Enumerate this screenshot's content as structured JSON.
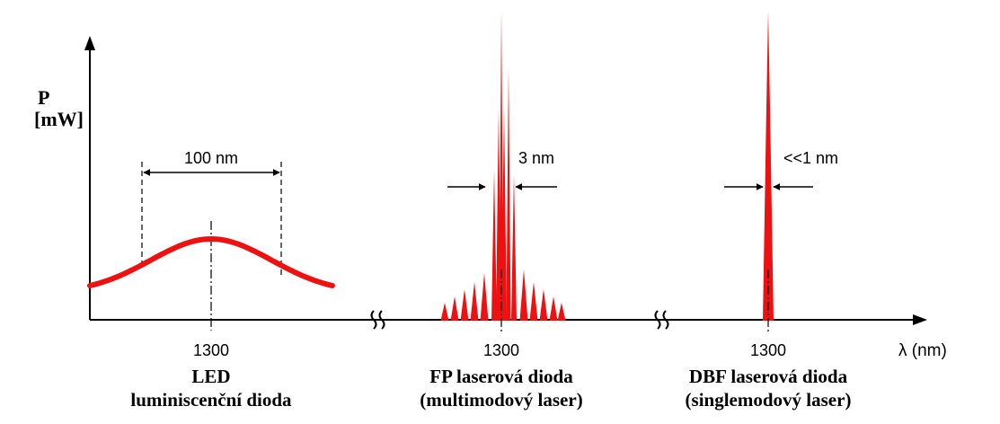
{
  "axis": {
    "y_label_line1": "P",
    "y_label_line2": "[mW]",
    "x_label": "λ (nm)"
  },
  "led": {
    "tick_label": "1300",
    "width_label": "100 nm",
    "title_line1": "LED",
    "title_line2": "luminiscenční dioda",
    "color": "#ee1111"
  },
  "fp": {
    "tick_label": "1300",
    "width_label": "3 nm",
    "title_line1": "FP laserová dioda",
    "title_line2": "(multimodový laser)",
    "color": "#ee1111"
  },
  "dbf": {
    "tick_label": "1300",
    "width_label": "<<1 nm",
    "title_line1": "DBF laserová dioda",
    "title_line2": "(singlemodový laser)",
    "color": "#ee1111"
  }
}
